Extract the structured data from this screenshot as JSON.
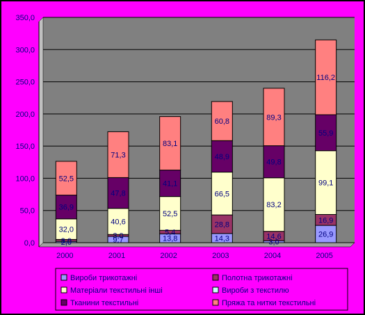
{
  "chart_data": {
    "type": "bar",
    "stacked": true,
    "categories": [
      "2000",
      "2001",
      "2002",
      "2003",
      "2004",
      "2005"
    ],
    "ylim": [
      0,
      350
    ],
    "yticks": [
      "0,0",
      "50,0",
      "100,0",
      "150,0",
      "200,0",
      "250,0",
      "300,0",
      "350,0"
    ],
    "grid": true,
    "legend_position": "bottom",
    "series": [
      {
        "name": "Вироби трикотажні",
        "color": "#9999ff",
        "values": [
          2.0,
          9.7,
          13.8,
          14.3,
          3.0,
          26.9
        ],
        "labels": [
          "2,0",
          "9,7",
          "13,8",
          "14,3",
          "3,0",
          "26,9"
        ]
      },
      {
        "name": "Полотна трикотажні",
        "color": "#993366",
        "values": [
          3.0,
          3.0,
          5.4,
          28.8,
          14.6,
          16.9
        ],
        "labels": [
          "3,0",
          "3,0",
          "5,4",
          "28,8",
          "14,6",
          "16,9"
        ]
      },
      {
        "name": "Матеріали текстильні інші",
        "color": "#ffffcc",
        "values": [
          32.0,
          40.6,
          52.5,
          66.5,
          83.2,
          99.1
        ],
        "labels": [
          "32,0",
          "40,6",
          "52,5",
          "66,5",
          "83,2",
          "99,1"
        ]
      },
      {
        "name": "Вироби з текстилю",
        "color": "#ccffff",
        "values": [
          0,
          0,
          0,
          0,
          0,
          0
        ],
        "labels": [
          "",
          "",
          "",
          "",
          "",
          ""
        ]
      },
      {
        "name": "Тканини текстильні",
        "color": "#660066",
        "values": [
          36.9,
          47.8,
          41.1,
          48.9,
          49.8,
          55.9
        ],
        "labels": [
          "36,9",
          "47,8",
          "41,1",
          "48,9",
          "49,8",
          "55,9"
        ]
      },
      {
        "name": "Пряжа та нитки текстильні",
        "color": "#ff8080",
        "values": [
          52.5,
          71.3,
          83.1,
          60.8,
          89.3,
          116.2
        ],
        "labels": [
          "52,5",
          "71,3",
          "83,1",
          "60,8",
          "89,3",
          "116,2"
        ]
      }
    ]
  },
  "colors": {
    "background": "#ff00ff",
    "plot_area": "#808080",
    "text": "#000080",
    "value_label": "#000080"
  }
}
